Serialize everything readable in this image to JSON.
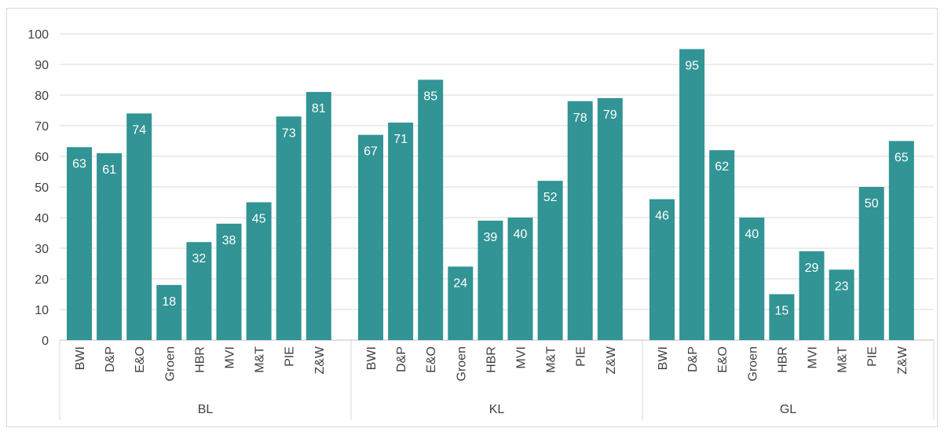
{
  "chart_data": {
    "type": "bar",
    "groups": [
      {
        "name": "BL",
        "categories": [
          "BWI",
          "D&P",
          "E&O",
          "Groen",
          "HBR",
          "MVI",
          "M&T",
          "PIE",
          "Z&W"
        ],
        "values": [
          63,
          61,
          74,
          18,
          32,
          38,
          45,
          73,
          81
        ]
      },
      {
        "name": "KL",
        "categories": [
          "BWI",
          "D&P",
          "E&O",
          "Groen",
          "HBR",
          "MVI",
          "M&T",
          "PIE",
          "Z&W"
        ],
        "values": [
          67,
          71,
          85,
          24,
          39,
          40,
          52,
          78,
          79
        ]
      },
      {
        "name": "GL",
        "categories": [
          "BWI",
          "D&P",
          "E&O",
          "Groen",
          "HBR",
          "MVI",
          "M&T",
          "PIE",
          "Z&W"
        ],
        "values": [
          46,
          95,
          62,
          40,
          15,
          29,
          23,
          50,
          65
        ]
      }
    ],
    "ylim": [
      0,
      100
    ],
    "yticks": [
      0,
      10,
      20,
      30,
      40,
      50,
      60,
      70,
      80,
      90,
      100
    ],
    "grid": true,
    "data_labels": "inside-end",
    "bar_color": "#329494",
    "title": "",
    "xlabel": "",
    "ylabel": ""
  }
}
